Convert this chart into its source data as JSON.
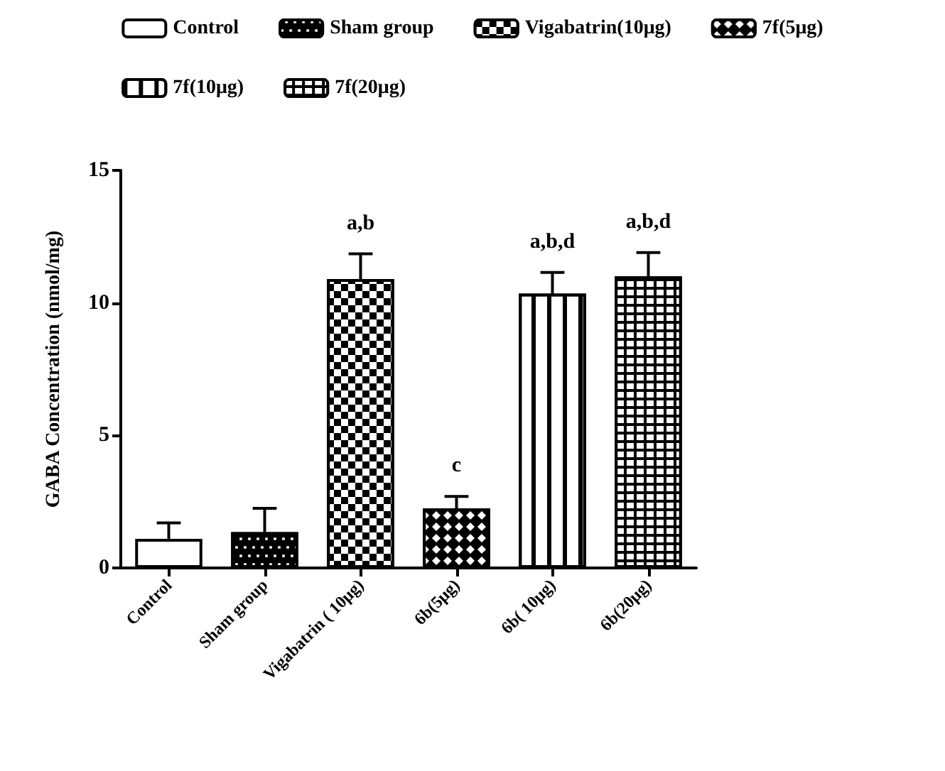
{
  "chart_data": {
    "type": "bar",
    "ylabel": "GABA Concentration (nmol/mg)",
    "categories": [
      "Control",
      "Sham group",
      "Vigabatrin ( 10μg)",
      "6b(5μg)",
      "6b( 10μg)",
      "6b(20μg)"
    ],
    "series": [
      {
        "name": "Control",
        "color": "#ffffff",
        "values": [
          1.1,
          null,
          null,
          null,
          null,
          null
        ],
        "errors": [
          0.6,
          null,
          null,
          null,
          null,
          null
        ]
      },
      {
        "name": "Sham group",
        "color": "#000000",
        "values": [
          null,
          1.35,
          null,
          null,
          null,
          null
        ],
        "errors": [
          null,
          0.9,
          null,
          null,
          null,
          null
        ]
      },
      {
        "name": "Vigabatrin(10μg)",
        "color": "#000000",
        "values": [
          null,
          null,
          10.9,
          null,
          null,
          null
        ],
        "errors": [
          null,
          null,
          0.95,
          null,
          null,
          null
        ],
        "value_labels": [
          null,
          null,
          "a,b",
          null,
          null,
          null
        ]
      },
      {
        "name": "7f(5μg)",
        "color": "#000000",
        "values": [
          null,
          null,
          null,
          2.25,
          null,
          null
        ],
        "errors": [
          null,
          null,
          null,
          0.45,
          null,
          null
        ],
        "value_labels": [
          null,
          null,
          null,
          "c",
          null,
          null
        ]
      },
      {
        "name": "7f(10μg)",
        "color": "#ffffff",
        "values": [
          null,
          null,
          null,
          null,
          10.35,
          null
        ],
        "errors": [
          null,
          null,
          null,
          null,
          0.8,
          null
        ],
        "value_labels": [
          null,
          null,
          null,
          null,
          "a,b,d",
          null
        ]
      },
      {
        "name": "7f(20μg)",
        "color": "#000000",
        "values": [
          null,
          null,
          null,
          null,
          null,
          11.0
        ],
        "errors": [
          null,
          null,
          null,
          null,
          null,
          0.9
        ],
        "value_labels": [
          null,
          null,
          null,
          null,
          null,
          "a,b,d"
        ]
      }
    ],
    "ylim": [
      0,
      15
    ],
    "yticks": [
      0,
      5,
      10,
      15
    ],
    "grid": false,
    "legend": "top"
  }
}
